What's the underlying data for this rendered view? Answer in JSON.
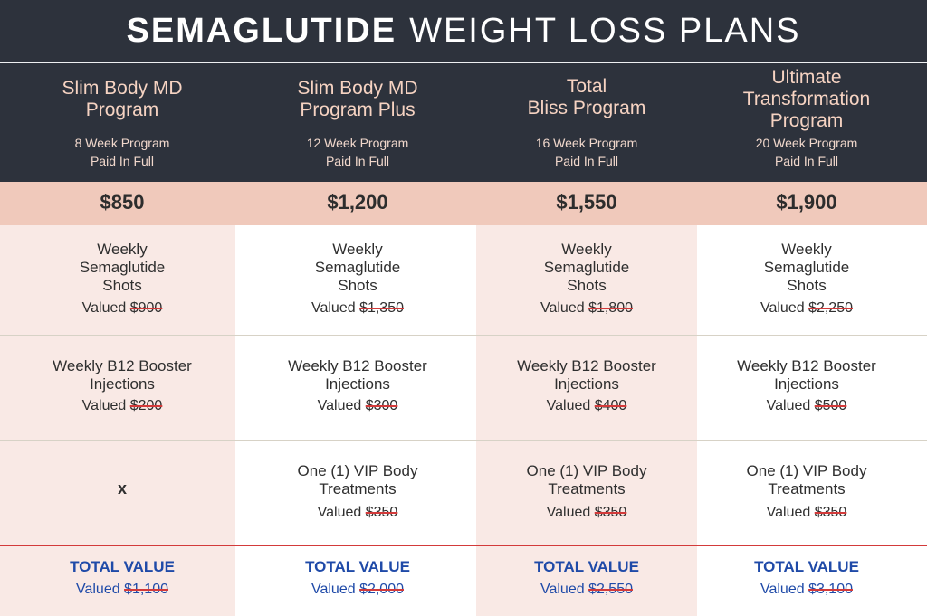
{
  "title": {
    "bold": "SEMAGLUTIDE",
    "light": "WEIGHT LOSS PLANS"
  },
  "plans": [
    {
      "name": "Slim Body MD\nProgram",
      "duration": "8 Week Program",
      "payment": "Paid In Full",
      "price": "$850",
      "shots": {
        "label": "Weekly\nSemaglutide\nShots",
        "valued_prefix": "Valued ",
        "value": "$900"
      },
      "b12": {
        "label": "Weekly B12 Booster\nInjections",
        "valued_prefix": "Valued ",
        "value": "$200"
      },
      "vip": {
        "none": "x"
      },
      "total": {
        "label": "TOTAL VALUE",
        "valued_prefix": "Valued ",
        "value": "$1,100"
      }
    },
    {
      "name": "Slim Body MD\nProgram Plus",
      "duration": "12 Week Program",
      "payment": "Paid In Full",
      "price": "$1,200",
      "shots": {
        "label": "Weekly\nSemaglutide\nShots",
        "valued_prefix": "Valued ",
        "value": "$1,350"
      },
      "b12": {
        "label": "Weekly B12 Booster\nInjections",
        "valued_prefix": "Valued ",
        "value": "$300"
      },
      "vip": {
        "label": "One (1) VIP Body\nTreatments",
        "valued_prefix": "Valued ",
        "value": "$350"
      },
      "total": {
        "label": "TOTAL VALUE",
        "valued_prefix": "Valued ",
        "value": "$2,000"
      }
    },
    {
      "name": "Total\nBliss Program",
      "duration": "16 Week Program",
      "payment": "Paid In Full",
      "price": "$1,550",
      "shots": {
        "label": "Weekly\nSemaglutide\nShots",
        "valued_prefix": "Valued ",
        "value": "$1,800"
      },
      "b12": {
        "label": "Weekly B12 Booster\nInjections",
        "valued_prefix": "Valued ",
        "value": "$400"
      },
      "vip": {
        "label": "One (1) VIP Body\nTreatments",
        "valued_prefix": "Valued ",
        "value": "$350"
      },
      "total": {
        "label": "TOTAL VALUE",
        "valued_prefix": "Valued ",
        "value": "$2,550"
      }
    },
    {
      "name": "Ultimate\nTransformation\nProgram",
      "duration": "20 Week Program",
      "payment": "Paid In Full",
      "price": "$1,900",
      "shots": {
        "label": "Weekly\nSemaglutide\nShots",
        "valued_prefix": "Valued ",
        "value": "$2,250"
      },
      "b12": {
        "label": "Weekly B12 Booster\nInjections",
        "valued_prefix": "Valued ",
        "value": "$500"
      },
      "vip": {
        "label": "One (1) VIP Body\nTreatments",
        "valued_prefix": "Valued ",
        "value": "$350"
      },
      "total": {
        "label": "TOTAL VALUE",
        "valued_prefix": "Valued ",
        "value": "$3,100"
      }
    }
  ],
  "colors": {
    "header_bg": "#2d323c",
    "plan_name": "#f6d3c2",
    "price_band": "#f0c9bb",
    "shaded_column": "#f9e9e5",
    "strike": "#d33a3a",
    "total_text": "#1f4aa8"
  }
}
